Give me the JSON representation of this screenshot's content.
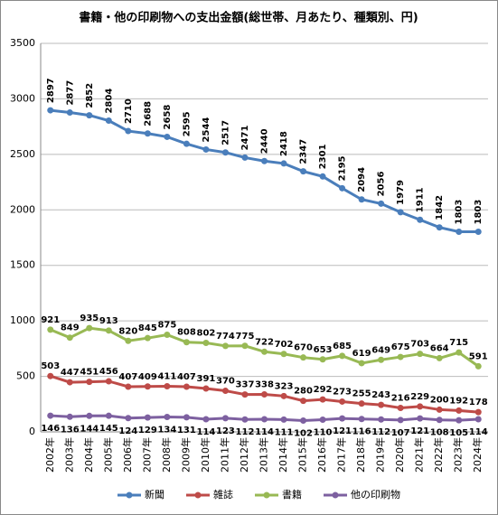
{
  "chart_data": {
    "type": "line",
    "title": "書籍・他の印刷物への支出金額(総世帯、月あたり、種類別、円)",
    "categories": [
      "2002年",
      "2003年",
      "2004年",
      "2005年",
      "2006年",
      "2007年",
      "2008年",
      "2009年",
      "2010年",
      "2011年",
      "2012年",
      "2013年",
      "2014年",
      "2015年",
      "2016年",
      "2017年",
      "2018年",
      "2019年",
      "2020年",
      "2021年",
      "2022年",
      "2023年",
      "2024年"
    ],
    "series": [
      {
        "name": "新聞",
        "color": "#4a7ebb",
        "values": [
          2897,
          2877,
          2852,
          2804,
          2710,
          2688,
          2658,
          2595,
          2544,
          2517,
          2471,
          2440,
          2418,
          2347,
          2301,
          2195,
          2094,
          2056,
          1979,
          1911,
          1842,
          1803,
          1803
        ]
      },
      {
        "name": "雑誌",
        "color": "#be4b48",
        "values": [
          503,
          447,
          451,
          456,
          407,
          409,
          411,
          407,
          391,
          370,
          337,
          338,
          323,
          280,
          292,
          273,
          255,
          243,
          216,
          229,
          200,
          192,
          178
        ]
      },
      {
        "name": "書籍",
        "color": "#98b954",
        "values": [
          921,
          849,
          935,
          913,
          820,
          845,
          875,
          808,
          802,
          774,
          775,
          722,
          702,
          670,
          653,
          685,
          619,
          649,
          675,
          703,
          664,
          715,
          591
        ]
      },
      {
        "name": "他の印刷物",
        "color": "#7d60a0",
        "values": [
          146,
          136,
          144,
          145,
          124,
          129,
          134,
          131,
          114,
          123,
          112,
          114,
          111,
          102,
          110,
          121,
          116,
          112,
          107,
          121,
          108,
          105,
          114
        ]
      }
    ],
    "ylim": [
      0,
      3500
    ],
    "yticks": [
      0,
      500,
      1000,
      1500,
      2000,
      2500,
      3000,
      3500
    ],
    "grid": true,
    "legend": "bottom"
  }
}
